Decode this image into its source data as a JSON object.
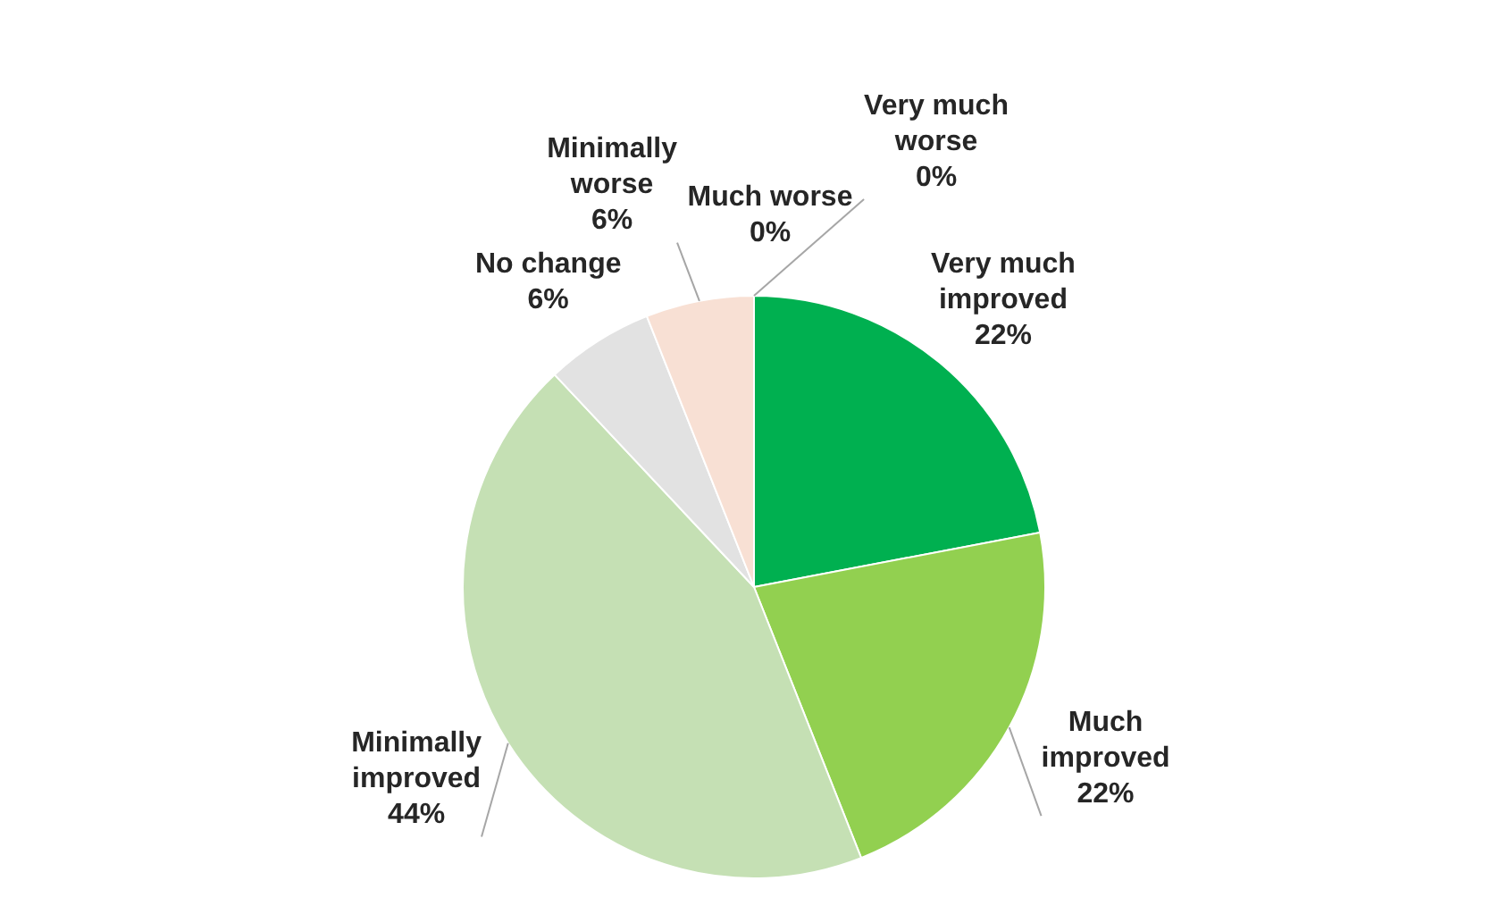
{
  "chart_data": {
    "type": "pie",
    "categories": [
      "Very much improved",
      "Much improved",
      "Minimally improved",
      "No change",
      "Minimally worse",
      "Much worse",
      "Very much worse"
    ],
    "values": [
      22,
      22,
      44,
      6,
      6,
      0,
      0
    ],
    "value_labels": [
      "22%",
      "22%",
      "44%",
      "6%",
      "6%",
      "0%",
      "0%"
    ],
    "colors": [
      "#00b050",
      "#92d050",
      "#c5e0b4",
      "#e2e2e2",
      "#f8e0d4",
      "#f4b183",
      "#c55a11"
    ],
    "legend": false
  }
}
